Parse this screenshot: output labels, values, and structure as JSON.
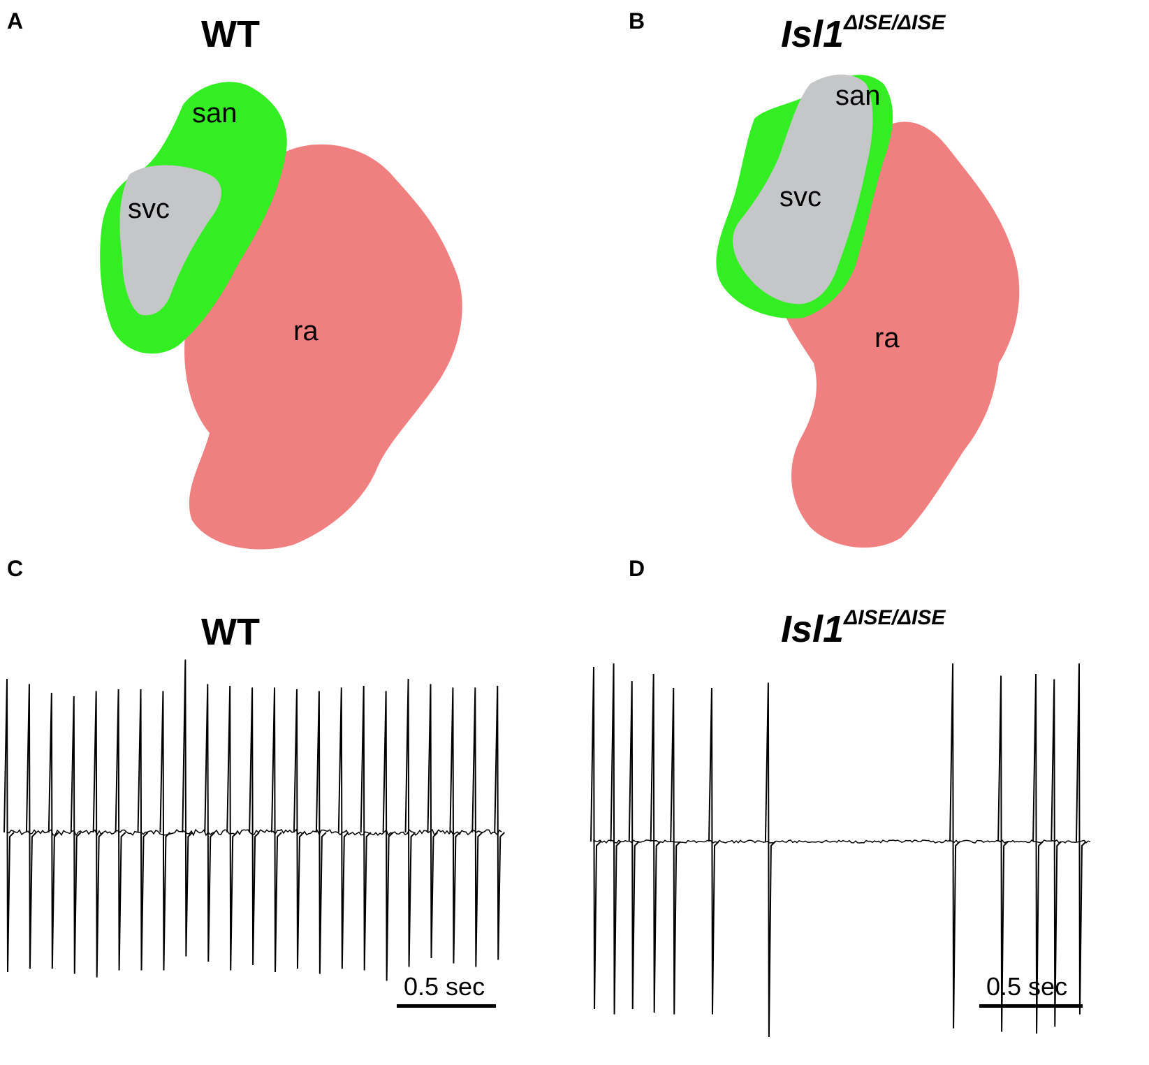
{
  "panels": {
    "A": {
      "letter": "A",
      "title": "WT"
    },
    "B": {
      "letter": "B",
      "title_main": "Isl1",
      "title_sup": "ΔISE/ΔISE"
    },
    "C": {
      "letter": "C",
      "title": "WT",
      "scale_label": "0.5 sec"
    },
    "D": {
      "letter": "D",
      "title_main": "Isl1",
      "title_sup": "ΔISE/ΔISE",
      "scale_label": "0.5 sec"
    }
  },
  "labels": {
    "san": "san",
    "svc": "svc",
    "ra": "ra"
  },
  "colors": {
    "san": "#33ee22",
    "svc": "#c4c6c7",
    "ra": "#f08080",
    "trace": "#000000"
  },
  "chart_data": [
    {
      "type": "line",
      "title": "WT",
      "xlabel": "",
      "ylabel": "",
      "scale_bar": "0.5 sec",
      "spike_times_sec": [
        0.0,
        0.12,
        0.24,
        0.36,
        0.48,
        0.6,
        0.72,
        0.84,
        0.96,
        1.08,
        1.2,
        1.32,
        1.44,
        1.56,
        1.68,
        1.8,
        1.92,
        2.04,
        2.16,
        2.28,
        2.4,
        2.52,
        2.64
      ],
      "spike_up": [
        0.88,
        0.85,
        0.8,
        0.78,
        0.81,
        0.82,
        0.82,
        0.81,
        0.99,
        0.85,
        0.84,
        0.83,
        0.83,
        0.82,
        0.81,
        0.83,
        0.84,
        0.81,
        0.88,
        0.85,
        0.83,
        0.83,
        0.84
      ],
      "spike_down": [
        0.8,
        0.78,
        0.78,
        0.81,
        0.83,
        0.79,
        0.79,
        0.79,
        0.71,
        0.74,
        0.79,
        0.76,
        0.8,
        0.78,
        0.81,
        0.78,
        0.79,
        0.85,
        0.77,
        0.72,
        0.75,
        0.77,
        0.73
      ]
    },
    {
      "type": "line",
      "title": "Isl1 ΔISE/ΔISE",
      "xlabel": "",
      "ylabel": "",
      "scale_bar": "0.5 sec",
      "spike_times_sec": [
        0.0,
        0.12,
        0.23,
        0.36,
        0.48,
        0.71,
        1.05,
        2.16,
        2.45,
        2.66,
        2.77,
        2.92
      ],
      "spike_up": [
        1.0,
        1.02,
        0.92,
        0.96,
        0.88,
        0.88,
        0.91,
        1.02,
        0.95,
        0.96,
        0.93,
        1.02
      ],
      "spike_down": [
        0.96,
        0.99,
        0.96,
        0.98,
        0.99,
        0.99,
        1.12,
        1.07,
        1.09,
        1.1,
        1.06,
        0.99
      ]
    }
  ]
}
